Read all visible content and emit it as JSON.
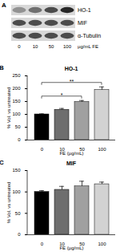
{
  "blot": {
    "panel": "A",
    "rows": [
      "HO-1",
      "MIF",
      "α-Tubulin"
    ],
    "lanes": [
      "0",
      "10",
      "50",
      "100"
    ],
    "unit": "μg/mL FE"
  },
  "chart_data": [
    {
      "type": "bar",
      "panel": "B",
      "title": "HO-1",
      "categories": [
        "0",
        "10",
        "50",
        "100"
      ],
      "values": [
        100,
        118,
        148,
        195
      ],
      "errors": [
        2,
        5,
        6,
        12
      ],
      "colors": [
        "#000000",
        "#6e6e6e",
        "#a0a0a0",
        "#d2d2d2"
      ],
      "x_label": "FE (μg/mL)",
      "y_label": "% Vol. vs untreated",
      "ylim": [
        0,
        250
      ],
      "yticks": [
        0,
        50,
        100,
        150,
        200,
        250
      ],
      "annotations": [
        {
          "text": "*",
          "from": "0",
          "to": "50"
        },
        {
          "text": "**",
          "from": "0",
          "to": "100"
        }
      ]
    },
    {
      "type": "bar",
      "panel": "C",
      "title": "MIF",
      "categories": [
        "0",
        "10",
        "50",
        "100"
      ],
      "values": [
        100,
        105,
        113,
        118
      ],
      "errors": [
        3,
        8,
        12,
        5
      ],
      "colors": [
        "#000000",
        "#6e6e6e",
        "#a0a0a0",
        "#d2d2d2"
      ],
      "x_label": "FE (μg/mL)",
      "y_label": "% Vol. vs untreated",
      "ylim": [
        0,
        150
      ],
      "yticks": [
        0,
        50,
        100,
        150
      ]
    }
  ]
}
